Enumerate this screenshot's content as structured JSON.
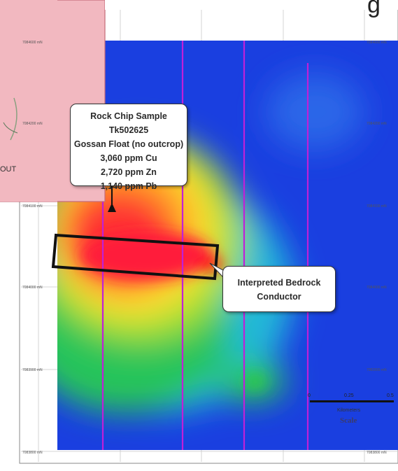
{
  "map": {
    "rock_chip_callout": {
      "lines": [
        "Rock Chip Sample Tk502625",
        "Gossan Float (no outcrop)",
        "3,060 ppm Cu",
        "2,720 ppm Zn",
        "1,140 ppm Pb"
      ]
    },
    "conductor_callout": {
      "lines": [
        "Interpreted Bedrock",
        "Conductor"
      ]
    },
    "scale": {
      "ticks": [
        "0",
        "0.25",
        "0.5"
      ],
      "units": "Kilometers",
      "title": "Scale"
    },
    "inset": {
      "partial_label": "OUT"
    },
    "banner": {
      "partial_text": "g"
    },
    "colors": {
      "background_anomaly": "#1a3fe0",
      "high_anomaly": "#ff1f3a",
      "mid_anomaly": "#ffe033",
      "low_anomaly": "#27c94a",
      "flight_lines": "#c020d8",
      "inset_fill": "#f2b8c0"
    }
  }
}
